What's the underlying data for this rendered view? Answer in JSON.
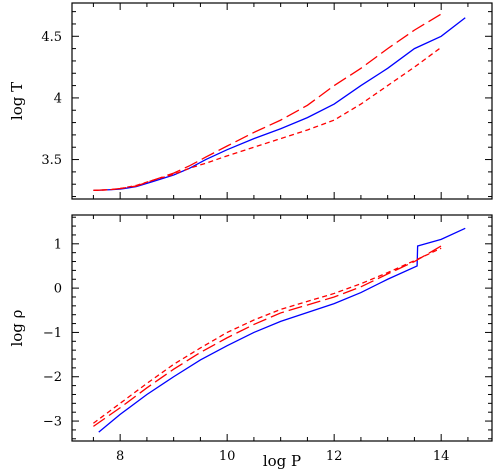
{
  "chart_data": [
    {
      "type": "line",
      "xlabel": "",
      "ylabel": "log T",
      "xlim": [
        7.1,
        14.95
      ],
      "ylim": [
        3.18,
        4.77
      ],
      "xticks": [
        8,
        10,
        12,
        14
      ],
      "xtick_labels": [],
      "yticks": [
        3.5,
        4,
        4.5
      ],
      "ytick_labels": [
        "3.5",
        "4",
        "4.5"
      ],
      "series": [
        {
          "color": "#0000ff",
          "dash": "solid",
          "x": [
            7.5,
            7.8,
            8.0,
            8.3,
            8.6,
            9.0,
            9.3,
            9.6,
            10.0,
            10.5,
            11.0,
            11.5,
            12.0,
            12.5,
            13.0,
            13.5,
            14.0,
            14.45
          ],
          "y": [
            3.25,
            3.255,
            3.26,
            3.28,
            3.32,
            3.375,
            3.43,
            3.5,
            3.58,
            3.67,
            3.75,
            3.84,
            3.95,
            4.1,
            4.24,
            4.4,
            4.5,
            4.65
          ]
        },
        {
          "color": "#ff0000",
          "dash": "long",
          "x": [
            7.5,
            7.8,
            8.0,
            8.3,
            8.6,
            9.0,
            9.3,
            9.6,
            10.0,
            10.5,
            11.0,
            11.5,
            12.0,
            12.5,
            13.0,
            13.5,
            14.0
          ],
          "y": [
            3.25,
            3.255,
            3.265,
            3.285,
            3.33,
            3.39,
            3.45,
            3.52,
            3.61,
            3.72,
            3.82,
            3.94,
            4.1,
            4.24,
            4.4,
            4.55,
            4.68
          ]
        },
        {
          "color": "#ff0000",
          "dash": "short",
          "x": [
            7.5,
            7.8,
            8.0,
            8.3,
            8.6,
            9.0,
            9.3,
            9.6,
            10.0,
            10.5,
            11.0,
            11.5,
            12.0,
            12.5,
            13.0,
            13.5,
            14.0
          ],
          "y": [
            3.25,
            3.255,
            3.265,
            3.29,
            3.33,
            3.38,
            3.43,
            3.47,
            3.53,
            3.6,
            3.67,
            3.74,
            3.82,
            3.95,
            4.1,
            4.25,
            4.41
          ]
        }
      ]
    },
    {
      "type": "line",
      "xlabel": "log P",
      "ylabel": "log ρ",
      "xlim": [
        7.1,
        14.95
      ],
      "ylim": [
        -3.45,
        1.65
      ],
      "xticks": [
        8,
        10,
        12,
        14
      ],
      "xtick_labels": [
        "8",
        "10",
        "12",
        "14"
      ],
      "yticks": [
        -3,
        -2,
        -1,
        0,
        1
      ],
      "ytick_labels": [
        "−3",
        "−2",
        "−1",
        "0",
        "1"
      ],
      "series": [
        {
          "color": "#0000ff",
          "dash": "solid",
          "x": [
            7.6,
            8.0,
            8.5,
            9.0,
            9.5,
            10.0,
            10.5,
            11.0,
            11.5,
            12.0,
            12.5,
            13.0,
            13.55,
            13.56,
            14.0,
            14.45
          ],
          "y": [
            -3.25,
            -2.85,
            -2.4,
            -2.0,
            -1.62,
            -1.3,
            -1.0,
            -0.75,
            -0.55,
            -0.35,
            -0.1,
            0.2,
            0.5,
            0.95,
            1.1,
            1.35
          ]
        },
        {
          "color": "#ff0000",
          "dash": "long",
          "x": [
            7.5,
            8.0,
            8.5,
            9.0,
            9.5,
            10.0,
            10.5,
            11.0,
            11.5,
            12.0,
            12.5,
            13.0,
            13.5,
            14.0
          ],
          "y": [
            -3.12,
            -2.7,
            -2.25,
            -1.83,
            -1.45,
            -1.12,
            -0.82,
            -0.56,
            -0.38,
            -0.2,
            0.03,
            0.32,
            0.6,
            0.95
          ]
        },
        {
          "color": "#ff0000",
          "dash": "short",
          "x": [
            7.5,
            8.0,
            8.5,
            9.0,
            9.5,
            10.0,
            10.5,
            11.0,
            11.5,
            12.0,
            12.5,
            13.0,
            13.5,
            14.0
          ],
          "y": [
            -3.05,
            -2.6,
            -2.15,
            -1.72,
            -1.35,
            -1.0,
            -0.72,
            -0.48,
            -0.3,
            -0.12,
            0.1,
            0.35,
            0.62,
            0.9
          ]
        }
      ]
    }
  ]
}
